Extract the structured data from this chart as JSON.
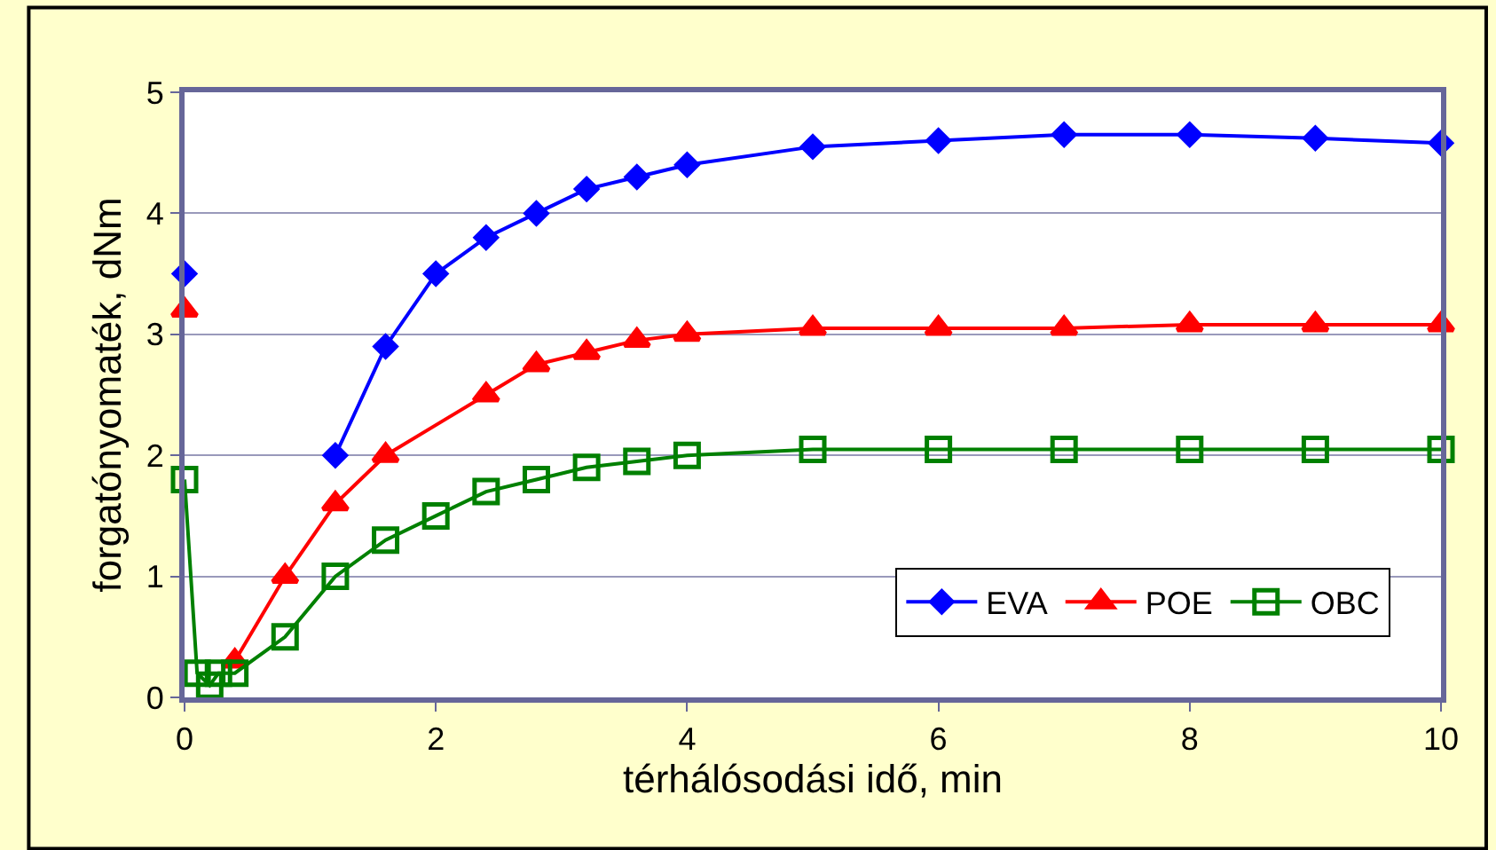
{
  "chart_data": {
    "type": "line",
    "xlabel": "térhálósodási idő, min",
    "ylabel": "forgatónyomaték, dNm",
    "xlim": [
      0,
      10
    ],
    "xticks": [
      0,
      2,
      4,
      6,
      8,
      10
    ],
    "ylim": [
      0,
      5
    ],
    "yticks": [
      0,
      1,
      2,
      3,
      4,
      5
    ],
    "grid": "y",
    "legend": "bottom right",
    "series": [
      {
        "name": "EVA",
        "color": "#0000ff",
        "marker": "diamond",
        "x": [
          0,
          0.1,
          0.4,
          0.8,
          1.2,
          1.6,
          2,
          2.4,
          2.8,
          3.2,
          3.6,
          4,
          5,
          6,
          7,
          8,
          9,
          10
        ],
        "values": [
          3.5,
          null,
          null,
          null,
          2.0,
          2.9,
          3.5,
          3.8,
          4.0,
          4.2,
          4.3,
          4.4,
          4.55,
          4.6,
          4.65,
          4.65,
          4.62,
          4.58
        ]
      },
      {
        "name": "POE",
        "color": "#ff0000",
        "marker": "triangle",
        "x": [
          0,
          0.1,
          0.4,
          0.8,
          1.2,
          1.6,
          2.4,
          2.8,
          3.2,
          3.6,
          4,
          5,
          6,
          7,
          8,
          9,
          10
        ],
        "values": [
          3.2,
          null,
          0.3,
          1.0,
          1.6,
          2.0,
          2.5,
          2.75,
          2.85,
          2.95,
          3.0,
          3.05,
          3.05,
          3.05,
          3.08,
          3.08,
          3.08
        ]
      },
      {
        "name": "OBC",
        "color": "#008000",
        "marker": "square",
        "x": [
          0,
          0.1,
          0.2,
          0.27,
          0.4,
          0.8,
          1.2,
          1.6,
          2,
          2.4,
          2.8,
          3.2,
          3.6,
          4,
          5,
          6,
          7,
          8,
          9,
          10
        ],
        "values": [
          1.8,
          0.2,
          0.1,
          0.2,
          0.2,
          0.5,
          1.0,
          1.3,
          1.5,
          1.7,
          1.8,
          1.9,
          1.95,
          2.0,
          2.05,
          2.05,
          2.05,
          2.05,
          2.05,
          2.05
        ]
      }
    ]
  }
}
